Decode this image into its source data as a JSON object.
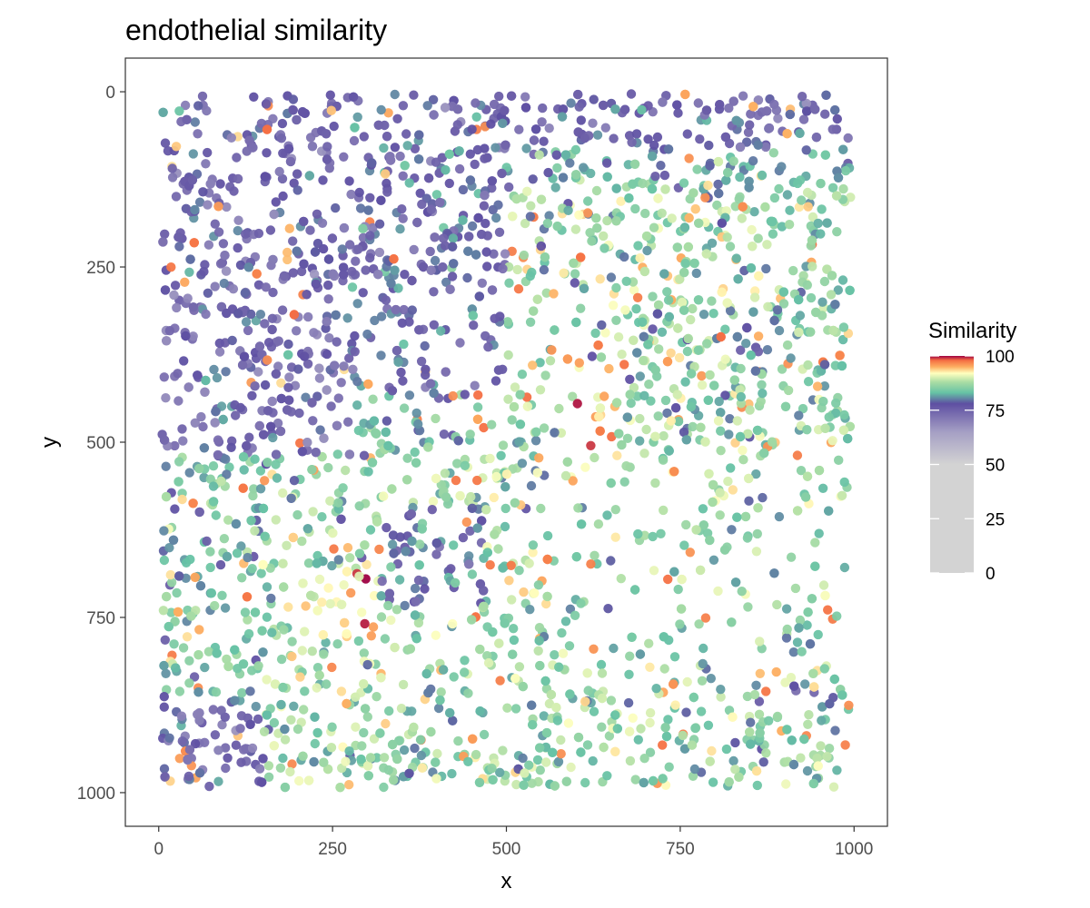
{
  "chart_data": {
    "type": "scatter",
    "title": "endothelial similarity",
    "xlabel": "x",
    "ylabel": "y",
    "xlim": [
      -48,
      1048
    ],
    "ylim": [
      1048,
      -48
    ],
    "y_reversed": true,
    "x_ticks": [
      0,
      250,
      500,
      750,
      1000
    ],
    "y_ticks": [
      0,
      250,
      500,
      750,
      1000
    ],
    "x_tick_labels": [
      "0",
      "250",
      "500",
      "750",
      "1000"
    ],
    "y_tick_labels": [
      "0",
      "250",
      "500",
      "750",
      "1000"
    ],
    "grid": false,
    "legend": {
      "title": "Similarity",
      "placement": "right",
      "range": [
        0,
        100
      ],
      "ticks": [
        0,
        25,
        50,
        75,
        100
      ],
      "tick_labels": [
        "0",
        "25",
        "50",
        "75",
        "100"
      ],
      "color_stops": [
        {
          "value": 0,
          "color": "#d3d3d3"
        },
        {
          "value": 50,
          "color": "#d3d3d3"
        },
        {
          "value": 65,
          "color": "#a59fc4"
        },
        {
          "value": 78,
          "color": "#5e4fa2"
        },
        {
          "value": 83,
          "color": "#66c2a5"
        },
        {
          "value": 88,
          "color": "#abdda4"
        },
        {
          "value": 92,
          "color": "#ffffbf"
        },
        {
          "value": 95,
          "color": "#fdae61"
        },
        {
          "value": 98,
          "color": "#f46d43"
        },
        {
          "value": 100,
          "color": "#9e0142"
        }
      ]
    },
    "regions": [
      {
        "x": [
          0,
          1000
        ],
        "y": [
          0,
          80
        ],
        "similarity": 76,
        "note": "top band, purple-grey"
      },
      {
        "x": [
          0,
          280
        ],
        "y": [
          80,
          520
        ],
        "similarity": 75
      },
      {
        "x": [
          280,
          500
        ],
        "y": [
          80,
          430
        ],
        "similarity": 77
      },
      {
        "x": [
          320,
          470
        ],
        "y": [
          590,
          730
        ],
        "similarity": 79
      },
      {
        "x": [
          830,
          900
        ],
        "y": [
          330,
          380
        ],
        "similarity": 79
      },
      {
        "x": [
          860,
          960
        ],
        "y": [
          845,
          880
        ],
        "similarity": 79
      },
      {
        "x": [
          0,
          150
        ],
        "y": [
          880,
          1000
        ],
        "similarity": 75
      },
      {
        "x": [
          150,
          1000
        ],
        "y": [
          520,
          1000
        ],
        "similarity": 86
      },
      {
        "x": [
          500,
          1000
        ],
        "y": [
          140,
          520
        ],
        "similarity": 86
      },
      {
        "x": [
          580,
          660
        ],
        "y": [
          380,
          520
        ],
        "similarity": 95
      },
      {
        "x": [
          200,
          320
        ],
        "y": [
          680,
          780
        ],
        "similarity": 93
      }
    ],
    "points_note": "several thousand spatial spots, each coloured by Similarity"
  }
}
